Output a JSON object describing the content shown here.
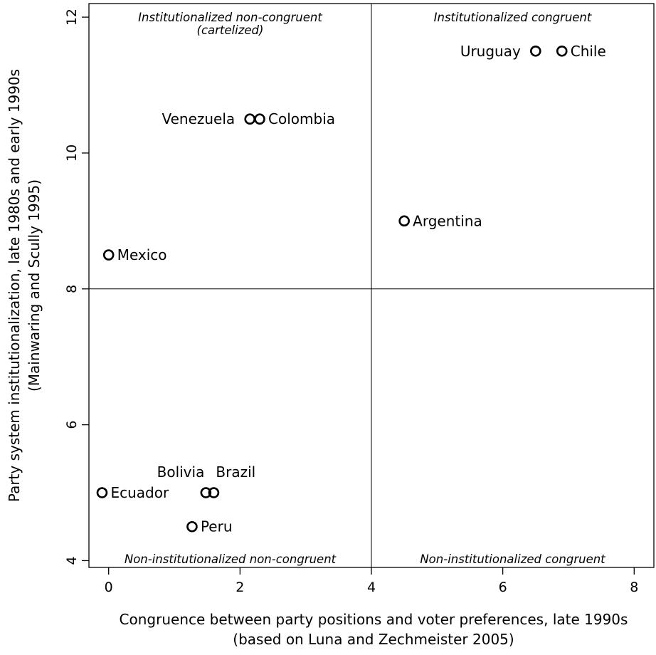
{
  "chart_data": {
    "type": "scatter",
    "title": "",
    "xlabel": [
      "Congruence between party positions and voter preferences, late 1990s",
      "(based on Luna and Zechmeister 2005)"
    ],
    "ylabel": [
      "Party system institutionalization, late 1980s and early 1990s",
      "(Mainwaring and Scully 1995)"
    ],
    "xlim": [
      -0.3,
      8.3
    ],
    "ylim": [
      3.9,
      12.2
    ],
    "xticks": [
      0,
      2,
      4,
      6,
      8
    ],
    "yticks": [
      4,
      6,
      8,
      10,
      12
    ],
    "reference_lines": {
      "x": 4,
      "y": 8
    },
    "grid": false,
    "points": [
      {
        "label": "Uruguay",
        "x": 6.5,
        "y": 11.5,
        "label_side": "left"
      },
      {
        "label": "Chile",
        "x": 6.9,
        "y": 11.5,
        "label_side": "right"
      },
      {
        "label": "Venezuela",
        "x": 2.15,
        "y": 10.5,
        "label_side": "left"
      },
      {
        "label": "Colombia",
        "x": 2.3,
        "y": 10.5,
        "label_side": "right"
      },
      {
        "label": "Argentina",
        "x": 4.5,
        "y": 9.0,
        "label_side": "right"
      },
      {
        "label": "Mexico",
        "x": 0.0,
        "y": 8.5,
        "label_side": "right"
      },
      {
        "label": "Ecuador",
        "x": -0.1,
        "y": 5.0,
        "label_side": "right"
      },
      {
        "label": "Bolivia",
        "x": 1.48,
        "y": 5.0,
        "label_side": "above-left"
      },
      {
        "label": "Brazil",
        "x": 1.6,
        "y": 5.0,
        "label_side": "above-right"
      },
      {
        "label": "Peru",
        "x": 1.27,
        "y": 4.5,
        "label_side": "right"
      }
    ],
    "quadrant_labels": {
      "top_left": [
        "Institutionalized non-congruent",
        "(cartelized)"
      ],
      "top_right": [
        "Institutionalized congruent"
      ],
      "bottom_left": [
        "Non-institutionalized non-congruent"
      ],
      "bottom_right": [
        "Non-institutionalized congruent"
      ]
    }
  }
}
